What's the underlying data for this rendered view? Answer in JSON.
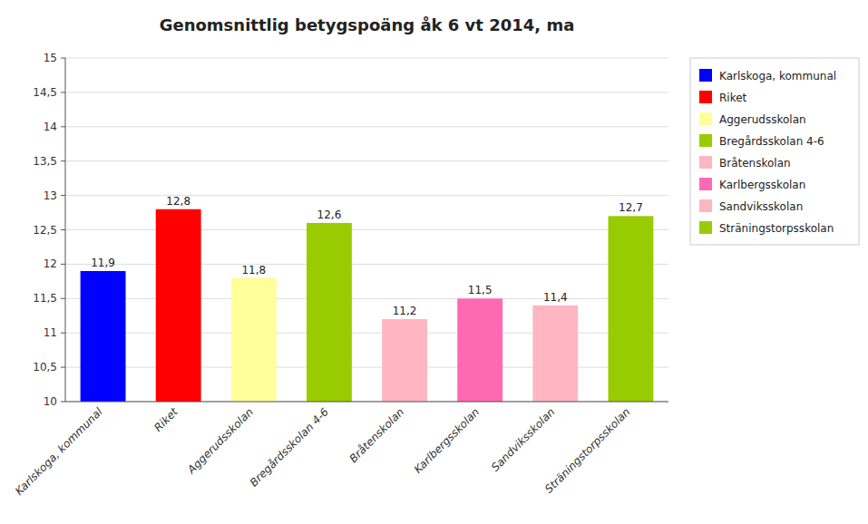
{
  "chart_data": {
    "type": "bar",
    "title": "Genomsnittlig betygspoäng åk 6 vt 2014, ma",
    "categories": [
      "Karlskoga, kommunal",
      "Riket",
      "Aggerudsskolan",
      "Bregårdsskolan 4-6",
      "Bråtenskolan",
      "Karlbergsskolan",
      "Sandviksskolan",
      "Sträningstorpsskolan"
    ],
    "values": [
      11.9,
      12.8,
      11.8,
      12.6,
      11.2,
      11.5,
      11.4,
      12.7
    ],
    "value_labels": [
      "11,9",
      "12,8",
      "11,8",
      "12,6",
      "11,2",
      "11,5",
      "11,4",
      "12,7"
    ],
    "colors": [
      "#0000FF",
      "#FF0000",
      "#FFFF99",
      "#99CC00",
      "#FFB6C1",
      "#FF69B4",
      "#FFB6C1",
      "#99CC00"
    ],
    "ylim": [
      10,
      15
    ],
    "yticks": [
      10,
      {
        "value": 10.5,
        "label": "10,5"
      },
      11,
      {
        "value": 11.5,
        "label": "11,5"
      },
      12,
      {
        "value": 12.5,
        "label": "12,5"
      },
      13,
      {
        "value": 13.5,
        "label": "13,5"
      },
      14,
      {
        "value": 14.5,
        "label": "14,5"
      },
      15
    ],
    "grid": true,
    "data_labels": true,
    "legend": "right"
  }
}
